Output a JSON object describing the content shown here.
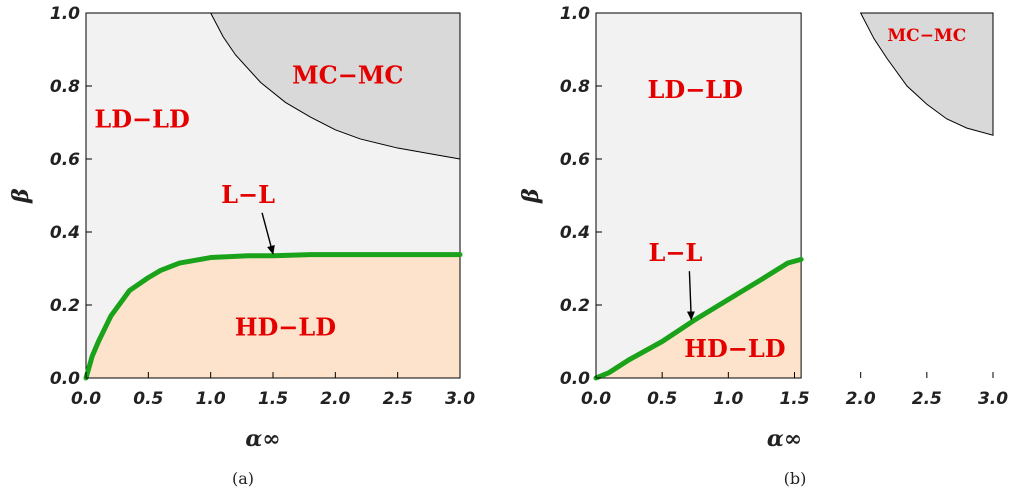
{
  "chart_data": [
    {
      "type": "area",
      "caption": "(a)",
      "xlabel": "α∞",
      "ylabel": "β",
      "xlim": [
        0,
        3
      ],
      "ylim": [
        0,
        1
      ],
      "xticks": [
        "0.0",
        "0.5",
        "1.0",
        "1.5",
        "2.0",
        "2.5",
        "3.0"
      ],
      "yticks": [
        "0.0",
        "0.2",
        "0.4",
        "0.6",
        "0.8",
        "1.0"
      ],
      "grid": false,
      "colors": {
        "background": "#f2f2f2",
        "lower": "#fde3cc",
        "upper": "#d9d9d9",
        "line": "#1aa31a"
      },
      "regions": [
        {
          "label": "LD−LD",
          "x": 0.45,
          "y": 0.71
        },
        {
          "label": "MC−MC",
          "x": 2.1,
          "y": 0.83
        },
        {
          "label": "HD−LD",
          "x": 1.6,
          "y": 0.14
        }
      ],
      "annotation": {
        "label": "L−L",
        "text_x": 1.3,
        "text_y": 0.48,
        "point_x": 1.5,
        "point_y": 0.335
      },
      "boundary_lower": {
        "x": [
          0,
          0.05,
          0.1,
          0.2,
          0.35,
          0.5,
          0.6,
          0.75,
          1.0,
          1.3,
          1.5,
          1.8,
          2.2,
          2.6,
          3.0
        ],
        "y": [
          0,
          0.06,
          0.1,
          0.17,
          0.24,
          0.275,
          0.295,
          0.315,
          0.33,
          0.335,
          0.335,
          0.338,
          0.338,
          0.338,
          0.338
        ]
      },
      "boundary_upper": {
        "x": [
          1.0,
          1.1,
          1.2,
          1.4,
          1.6,
          1.8,
          2.0,
          2.2,
          2.5,
          2.8,
          3.0
        ],
        "y": [
          1.0,
          0.935,
          0.885,
          0.81,
          0.755,
          0.715,
          0.68,
          0.655,
          0.63,
          0.612,
          0.6
        ]
      }
    },
    {
      "type": "area",
      "caption": "(b)",
      "xlabel": "α∞",
      "ylabel": "β",
      "xlim": [
        0,
        3
      ],
      "ylim": [
        0,
        1
      ],
      "xticks": [
        "0.0",
        "0.5",
        "1.0",
        "1.5",
        "2.0",
        "2.5",
        "3.0"
      ],
      "yticks": [
        "0.0",
        "0.2",
        "0.4",
        "0.6",
        "0.8",
        "1.0"
      ],
      "grid": false,
      "colors": {
        "background": "#f2f2f2",
        "lower": "#fde3cc",
        "upper": "#d9d9d9",
        "line": "#1aa31a"
      },
      "box_x_max": 1.55,
      "regions": [
        {
          "label": "LD−LD",
          "x": 0.75,
          "y": 0.79
        },
        {
          "label": "MC−MC",
          "x": 2.5,
          "y": 0.94
        },
        {
          "label": "HD−LD",
          "x": 1.05,
          "y": 0.08
        }
      ],
      "annotation": {
        "label": "L−L",
        "text_x": 0.6,
        "text_y": 0.32,
        "point_x": 0.72,
        "point_y": 0.155
      },
      "boundary_lower": {
        "x": [
          0,
          0.1,
          0.25,
          0.5,
          0.75,
          1.0,
          1.25,
          1.45,
          1.55
        ],
        "y": [
          0,
          0.015,
          0.05,
          0.1,
          0.16,
          0.215,
          0.27,
          0.315,
          0.325
        ]
      },
      "boundary_upper": {
        "x": [
          2.0,
          2.1,
          2.2,
          2.35,
          2.5,
          2.65,
          2.8,
          3.0
        ],
        "y": [
          1.0,
          0.93,
          0.875,
          0.8,
          0.75,
          0.71,
          0.685,
          0.665
        ]
      }
    }
  ]
}
